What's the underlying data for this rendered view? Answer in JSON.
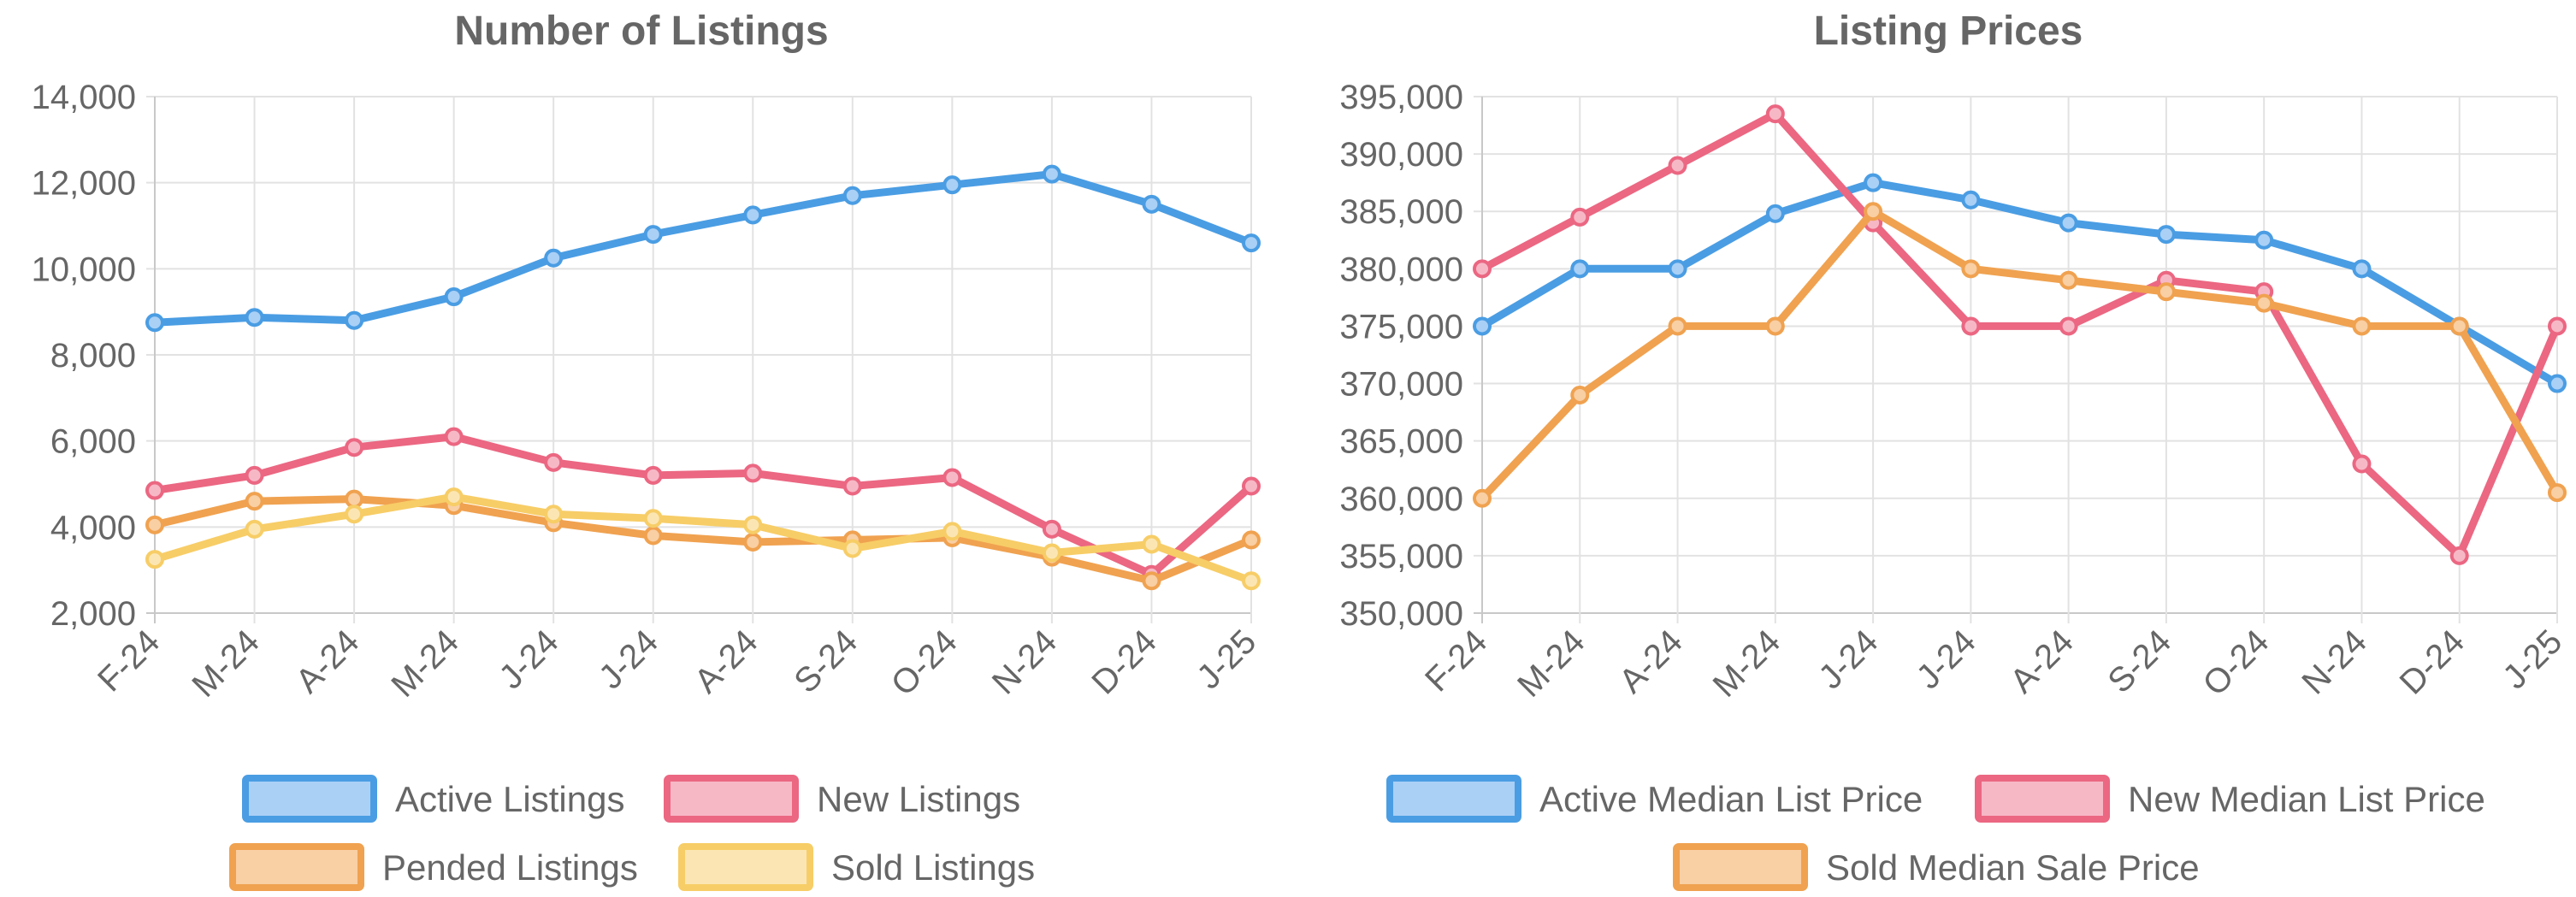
{
  "charts": [
    {
      "title": "Number of Listings"
    },
    {
      "title": "Listing Prices"
    }
  ],
  "chart_data": [
    {
      "type": "line",
      "title": "Number of Listings",
      "xlabel": "",
      "ylabel": "",
      "categories": [
        "F-24",
        "M-24",
        "A-24",
        "M-24",
        "J-24",
        "J-24",
        "A-24",
        "S-24",
        "O-24",
        "N-24",
        "D-24",
        "J-25"
      ],
      "ylim": [
        2000,
        14000
      ],
      "yticks": [
        "2,000",
        "4,000",
        "6,000",
        "8,000",
        "10,000",
        "12,000",
        "14,000"
      ],
      "grid": true,
      "legend_position": "bottom",
      "series": [
        {
          "name": "Active Listings",
          "color": "#4a9de3",
          "fill": "#aad0f6",
          "values": [
            8750,
            8870,
            8800,
            9350,
            10250,
            10800,
            11250,
            11700,
            11950,
            12200,
            11500,
            10600
          ]
        },
        {
          "name": "New Listings",
          "color": "#eb6782",
          "fill": "#f7b8c6",
          "values": [
            4850,
            5200,
            5850,
            6100,
            5500,
            5200,
            5250,
            4950,
            5150,
            3950,
            2900,
            4950
          ]
        },
        {
          "name": "Pended Listings",
          "color": "#f0a250",
          "fill": "#f9cfa4",
          "values": [
            4050,
            4600,
            4650,
            4500,
            4100,
            3800,
            3650,
            3700,
            3750,
            3300,
            2750,
            3700
          ]
        },
        {
          "name": "Sold Listings",
          "color": "#f7cd67",
          "fill": "#fbe6b3",
          "values": [
            3250,
            3950,
            4300,
            4700,
            4300,
            4200,
            4050,
            3500,
            3900,
            3400,
            3600,
            2750
          ]
        }
      ]
    },
    {
      "type": "line",
      "title": "Listing Prices",
      "xlabel": "",
      "ylabel": "",
      "categories": [
        "F-24",
        "M-24",
        "A-24",
        "M-24",
        "J-24",
        "J-24",
        "A-24",
        "S-24",
        "O-24",
        "N-24",
        "D-24",
        "J-25"
      ],
      "ylim": [
        350000,
        395000
      ],
      "yticks": [
        "350,000",
        "355,000",
        "360,000",
        "365,000",
        "370,000",
        "375,000",
        "380,000",
        "385,000",
        "390,000",
        "395,000"
      ],
      "grid": true,
      "legend_position": "bottom",
      "series": [
        {
          "name": "Active Median List Price",
          "color": "#4a9de3",
          "fill": "#aad0f6",
          "values": [
            375000,
            380000,
            380000,
            384800,
            387500,
            386000,
            384000,
            383000,
            382500,
            380000,
            375000,
            370000
          ]
        },
        {
          "name": "New Median List Price",
          "color": "#eb6782",
          "fill": "#f7b8c6",
          "values": [
            380000,
            384500,
            389000,
            393500,
            384000,
            375000,
            375000,
            379000,
            378000,
            363000,
            355000,
            375000
          ]
        },
        {
          "name": "Sold Median Sale Price",
          "color": "#f0a250",
          "fill": "#f9cfa4",
          "values": [
            360000,
            369000,
            375000,
            375000,
            385000,
            380000,
            379000,
            378000,
            377000,
            375000,
            375000,
            360500
          ]
        }
      ]
    }
  ]
}
